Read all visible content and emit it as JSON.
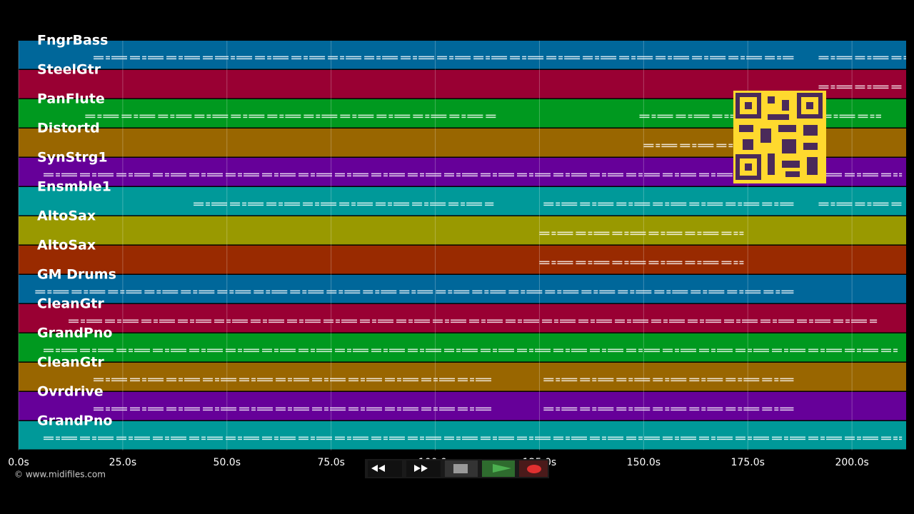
{
  "chart_data": {
    "type": "tracks",
    "xlim": [
      0,
      213
    ],
    "xticks": [
      {
        "value": 0,
        "label": "0.0s"
      },
      {
        "value": 25,
        "label": "25.0s"
      },
      {
        "value": 50,
        "label": "50.0s"
      },
      {
        "value": 75,
        "label": "75.0s"
      },
      {
        "value": 100,
        "label": "100.0s"
      },
      {
        "value": 125,
        "label": "125.0s"
      },
      {
        "value": 150,
        "label": "150.0s"
      },
      {
        "value": 175,
        "label": "175.0s"
      },
      {
        "value": 200,
        "label": "200.0s"
      }
    ],
    "grid": true,
    "tracks": [
      {
        "name": "FngrBass",
        "color": "#00679a",
        "segments": [
          [
            18,
            48
          ],
          [
            48,
            186
          ],
          [
            192,
            213
          ]
        ]
      },
      {
        "name": "SteelGtr",
        "color": "#990033",
        "segments": [
          [
            192,
            212
          ]
        ]
      },
      {
        "name": "PanFlute",
        "color": "#00991f",
        "segments": [
          [
            16,
            115
          ],
          [
            149,
            207
          ]
        ]
      },
      {
        "name": "Distortd",
        "color": "#996600",
        "segments": [
          [
            150,
            172
          ]
        ]
      },
      {
        "name": "SynStrg1",
        "color": "#660099",
        "segments": [
          [
            6,
            212
          ]
        ]
      },
      {
        "name": "Ensmble1",
        "color": "#009999",
        "segments": [
          [
            42,
            114
          ],
          [
            126,
            186
          ],
          [
            192,
            212
          ]
        ]
      },
      {
        "name": "AltoSax",
        "color": "#999900",
        "segments": [
          [
            125,
            174
          ]
        ]
      },
      {
        "name": "AltoSax",
        "color": "#992a00",
        "segments": [
          [
            125,
            174
          ]
        ]
      },
      {
        "name": "GM Drums",
        "color": "#00679a",
        "segments": [
          [
            4,
            186
          ]
        ]
      },
      {
        "name": "CleanGtr",
        "color": "#990033",
        "segments": [
          [
            12,
            206
          ]
        ]
      },
      {
        "name": "GrandPno",
        "color": "#00991f",
        "segments": [
          [
            6,
            211
          ]
        ]
      },
      {
        "name": "CleanGtr",
        "color": "#996600",
        "segments": [
          [
            18,
            114
          ],
          [
            126,
            186
          ]
        ]
      },
      {
        "name": "Ovrdrive",
        "color": "#660099",
        "segments": [
          [
            18,
            114
          ],
          [
            126,
            186
          ]
        ]
      },
      {
        "name": "GrandPno",
        "color": "#009999",
        "segments": [
          [
            6,
            212
          ]
        ]
      }
    ]
  },
  "footer": {
    "copyright": "© www.midifiles.com"
  }
}
